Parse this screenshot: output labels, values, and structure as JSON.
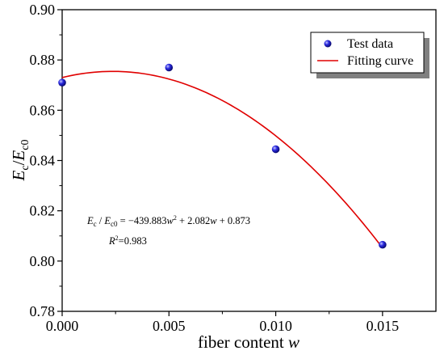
{
  "chart_data": {
    "type": "scatter",
    "title": "",
    "xlabel": "fiber content",
    "xlabel_var": "w",
    "ylabel": "E",
    "ylabel_sub": "c",
    "ylabel_slash": "/",
    "ylabel_den": "E",
    "ylabel_den_sub": "c0",
    "xlim": [
      0.0,
      0.0175
    ],
    "ylim": [
      0.78,
      0.9
    ],
    "x_ticks": [
      "0.000",
      "0.005",
      "0.010",
      "0.015"
    ],
    "x_tick_values": [
      0.0,
      0.005,
      0.01,
      0.015
    ],
    "y_ticks": [
      "0.78",
      "0.80",
      "0.82",
      "0.84",
      "0.86",
      "0.88",
      "0.90"
    ],
    "y_tick_values": [
      0.78,
      0.8,
      0.82,
      0.84,
      0.86,
      0.88,
      0.9
    ],
    "grid": false,
    "legend_position": "top-right",
    "series": [
      {
        "name": "Test data",
        "kind": "points",
        "color": "#2a2ae0",
        "x": [
          0.0,
          0.005,
          0.01,
          0.015
        ],
        "y": [
          0.871,
          0.877,
          0.8445,
          0.8065
        ]
      },
      {
        "name": "Fitting curve",
        "kind": "curve",
        "color": "#e00000",
        "coefficients": {
          "a": -439.883,
          "b": 2.082,
          "c": 0.873
        },
        "x_range": [
          0.0,
          0.015
        ]
      }
    ],
    "annotation": {
      "lhs_E": "E",
      "lhs_c": "c",
      "lhs_slash": " / ",
      "lhs_E2": "E",
      "lhs_c0": "c0",
      "rhs": " = −439.883",
      "w1": "w",
      "sup2": "2",
      "mid": " + 2.082",
      "w2": "w",
      "tail": " + 0.873",
      "r_label": "R",
      "r_sup": "2",
      "r_value": "=0.983"
    }
  }
}
